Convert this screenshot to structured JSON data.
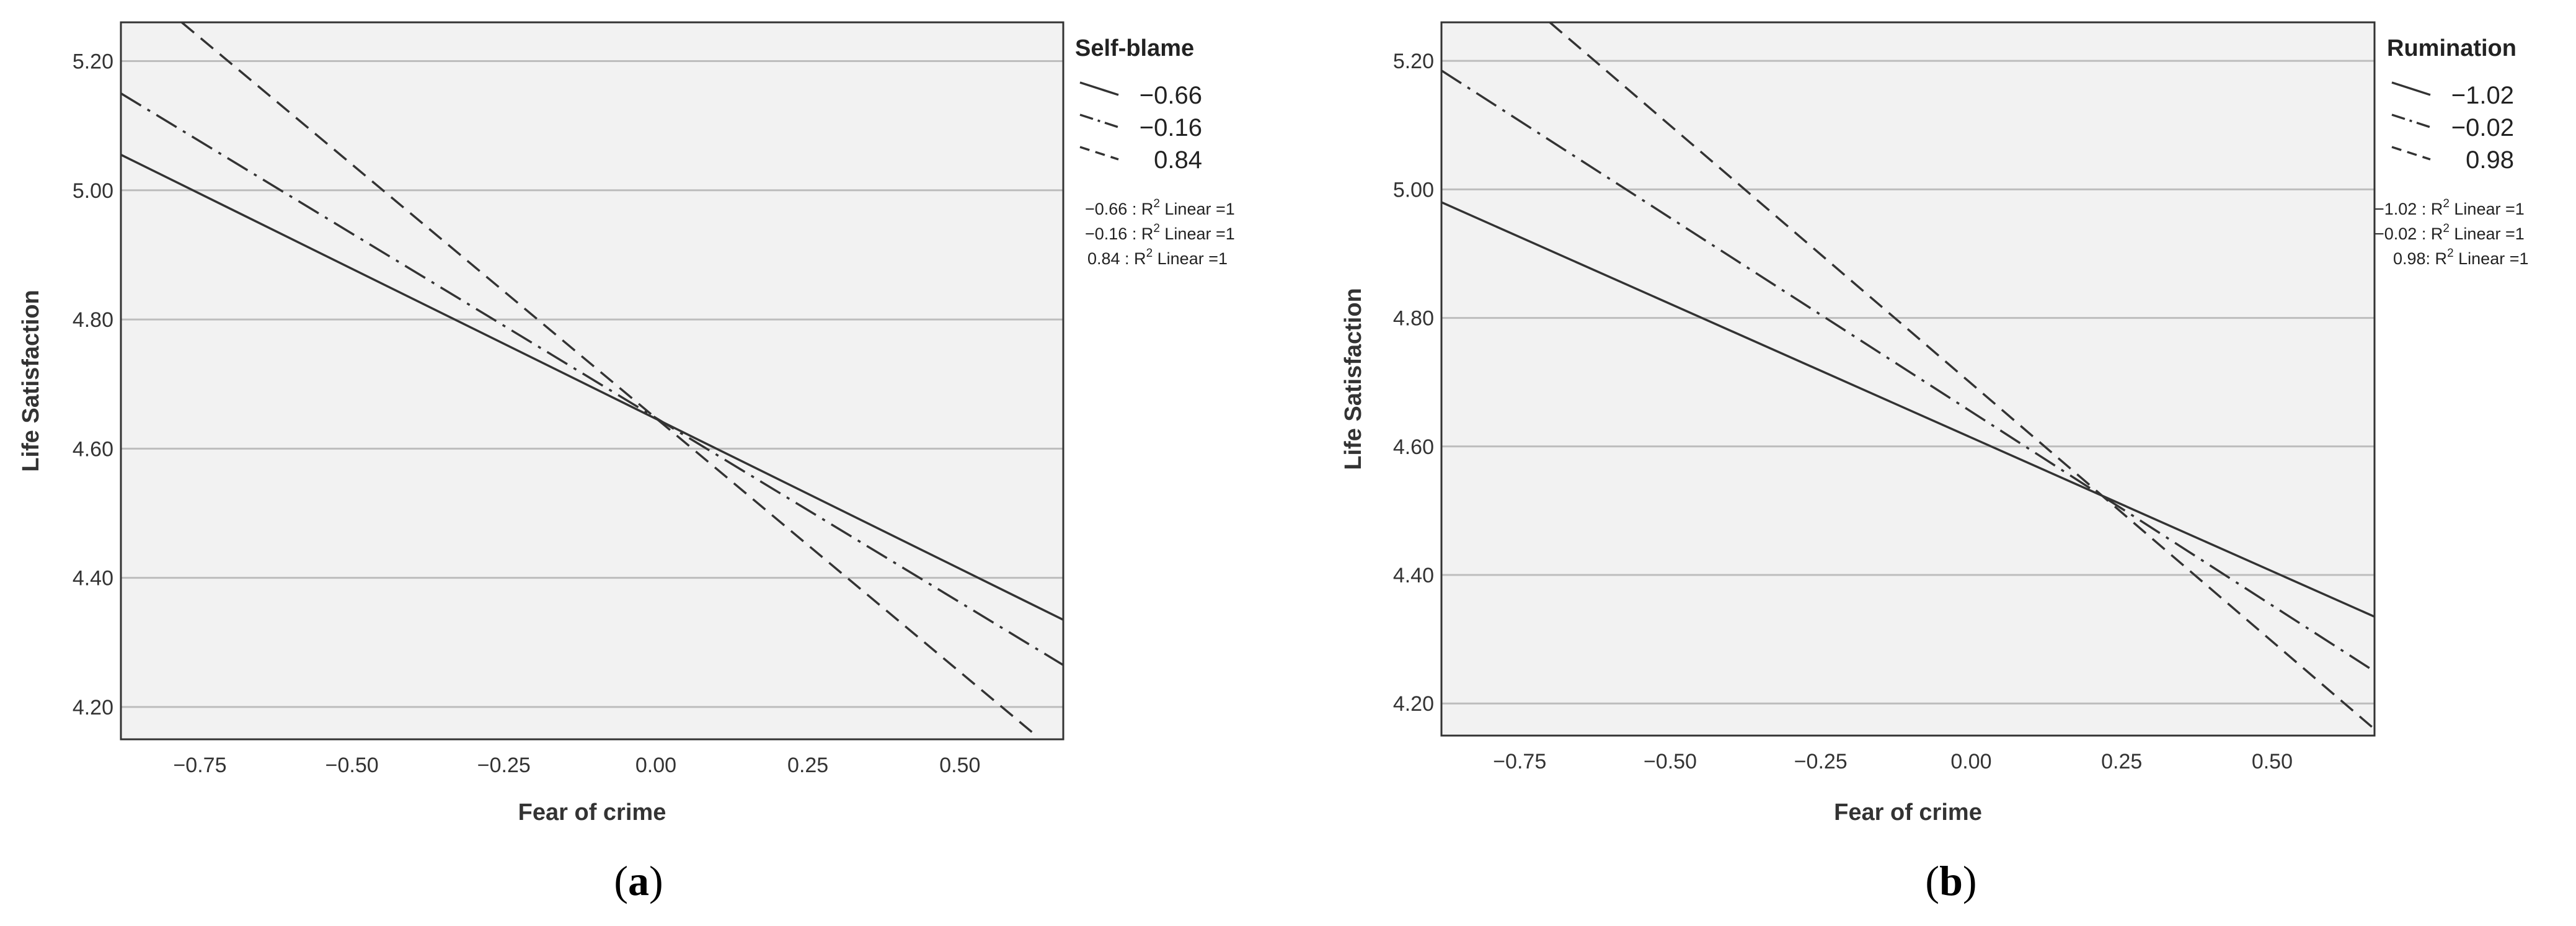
{
  "chart_data": [
    {
      "type": "line",
      "panel_label": "a",
      "xlabel": "Fear of crime",
      "ylabel": "Life Satisfaction",
      "xlim": [
        -0.88,
        0.67
      ],
      "ylim": [
        4.15,
        5.26
      ],
      "xticks": [
        "-0.75",
        "-0.50",
        "-0.25",
        "0.00",
        "0.25",
        "0.50"
      ],
      "yticks": [
        "4.20",
        "4.40",
        "4.60",
        "4.80",
        "5.00",
        "5.20"
      ],
      "grid": "horizontal",
      "legend_title": "Self-blame",
      "legend_position": "right",
      "series": [
        {
          "name": "-0.66",
          "style": "solid",
          "x": [
            -0.88,
            0.67
          ],
          "y": [
            5.055,
            4.335
          ]
        },
        {
          "name": "-0.16",
          "style": "dashdot",
          "x": [
            -0.88,
            0.67
          ],
          "y": [
            5.15,
            4.265
          ]
        },
        {
          "name": "0.84",
          "style": "dashed",
          "x": [
            -0.78,
            0.62
          ],
          "y": [
            5.26,
            4.16
          ]
        }
      ],
      "fit_labels": [
        {
          "prefix": "-0.66 : R",
          "sup": "2",
          "suffix": " Linear =1"
        },
        {
          "prefix": "-0.16 : R",
          "sup": "2",
          "suffix": " Linear =1"
        },
        {
          "prefix": "0.84 : R",
          "sup": "2",
          "suffix": " Linear =1"
        }
      ]
    },
    {
      "type": "line",
      "panel_label": "b",
      "xlabel": "Fear of crime",
      "ylabel": "Life Satisfaction",
      "xlim": [
        -0.88,
        0.67
      ],
      "ylim": [
        4.15,
        5.26
      ],
      "xticks": [
        "-0.75",
        "-0.50",
        "-0.25",
        "0.00",
        "0.25",
        "0.50"
      ],
      "yticks": [
        "4.20",
        "4.40",
        "4.60",
        "4.80",
        "5.00",
        "5.20"
      ],
      "grid": "horizontal",
      "legend_title": "Rumination",
      "legend_position": "right",
      "series": [
        {
          "name": "-1.02",
          "style": "solid",
          "x": [
            -0.88,
            0.67
          ],
          "y": [
            4.98,
            4.335
          ]
        },
        {
          "name": "-0.02",
          "style": "dashdot",
          "x": [
            -0.88,
            0.67
          ],
          "y": [
            5.185,
            4.25
          ]
        },
        {
          "name": "0.98",
          "style": "dashed",
          "x": [
            -0.7,
            0.67
          ],
          "y": [
            5.26,
            4.16
          ]
        }
      ],
      "fit_labels": [
        {
          "prefix": "-1.02 : R",
          "sup": "2",
          "suffix": " Linear =1"
        },
        {
          "prefix": "-0.02 : R",
          "sup": "2",
          "suffix": " Linear =1"
        },
        {
          "prefix": "0.98: R",
          "sup": "2",
          "suffix": " Linear =1"
        }
      ]
    }
  ]
}
